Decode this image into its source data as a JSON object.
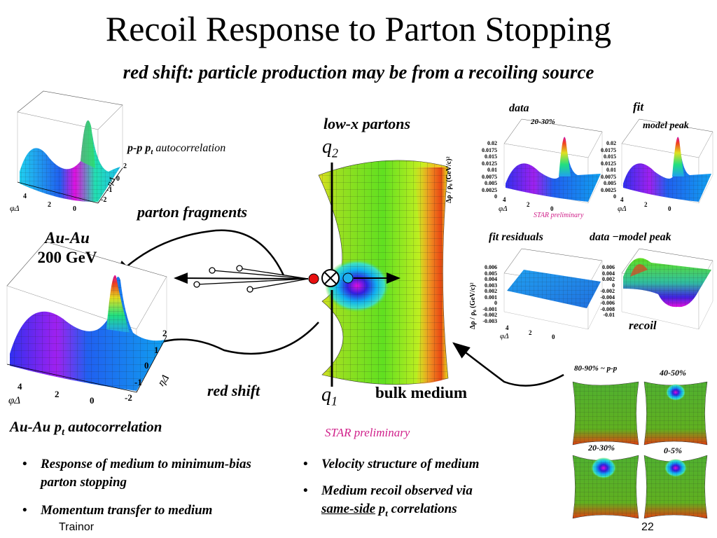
{
  "title": "Recoil Response to Parton Stopping",
  "subtitle": "red shift: particle production may be from a recoiling source",
  "labels": {
    "pp_prefix": "p-p p",
    "pp_sub": "t",
    "pp_suffix": " autocorrelation",
    "parton_fragments": "parton fragments",
    "auau_line1": "Au-Au",
    "auau_line2": "200 GeV",
    "low_x_partons": "low-x partons",
    "q": "q",
    "q2_sub": "2",
    "q1_sub": "1",
    "red_shift": "red shift",
    "bulk_medium": "bulk medium",
    "star_preliminary": "STAR preliminary",
    "auau_pt_prefix": "Au-Au p",
    "auau_pt_sub": "t",
    "auau_pt_suffix": " autocorrelation",
    "data": "data",
    "fit": "fit",
    "model_peak": "model peak",
    "centrality_20_30": "20-30%",
    "fit_residuals": "fit residuals",
    "data_minus": "data",
    "minus_sign": "−",
    "data_model_peak": "model peak",
    "recoil": "recoil",
    "c_80_90": "80-90% ~ p-p",
    "c_40_50": "40-50%",
    "c_20_30": "20-30%",
    "c_0_5": "0-5%",
    "phi_delta": "φΔ",
    "eta_delta": "ηΔ",
    "yaxis_label": "Δρ / ρ₀ (GeV/c)²"
  },
  "axis_ticks": {
    "phi_ticks": [
      "4",
      "2",
      "0"
    ],
    "eta_ticks": [
      "2",
      "1",
      "0",
      "-1",
      "-2"
    ],
    "top_z_ticks": [
      "0.02",
      "0.0175",
      "0.015",
      "0.0125",
      "0.01",
      "0.0075",
      "0.005",
      "0.0025",
      "0"
    ],
    "res_z_ticks": [
      "0.006",
      "0.005",
      "0.004",
      "0.003",
      "0.002",
      "0.001",
      "0",
      "-0.001",
      "-0.002",
      "-0.003"
    ],
    "recoil_z_ticks": [
      "0.006",
      "0.004",
      "0.002",
      "0",
      "-0.002",
      "-0.004",
      "-0.006",
      "-0.008",
      "-0.01"
    ]
  },
  "bullets_left": [
    "Response of medium to minimum-bias parton stopping",
    "Momentum transfer to medium"
  ],
  "bullets_right": [
    "Velocity structure of medium",
    "Medium recoil observed via"
  ],
  "bullet_right_2b": {
    "underlined": "same-side",
    "p": " p",
    "sub": "t",
    "rest": " correlations"
  },
  "footer": {
    "author": "Trainor",
    "page": "22"
  },
  "colors": {
    "magenta": "#d0208a",
    "surface_green": "#7fe020",
    "surface_yellow": "#d6f020",
    "red": "#e81010",
    "blue": "#1a8cf0"
  }
}
